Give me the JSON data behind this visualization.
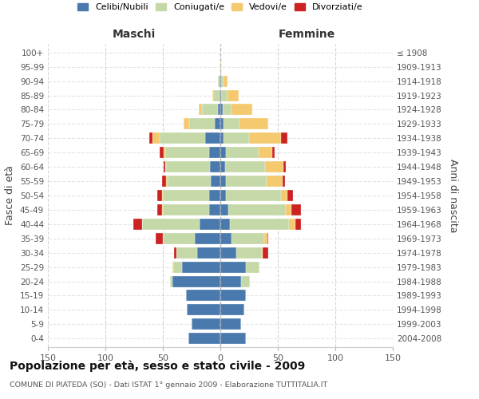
{
  "age_groups": [
    "100+",
    "95-99",
    "90-94",
    "85-89",
    "80-84",
    "75-79",
    "70-74",
    "65-69",
    "60-64",
    "55-59",
    "50-54",
    "45-49",
    "40-44",
    "35-39",
    "30-34",
    "25-29",
    "20-24",
    "15-19",
    "10-14",
    "5-9",
    "0-4"
  ],
  "birth_years": [
    "≤ 1908",
    "1909-1913",
    "1914-1918",
    "1919-1923",
    "1924-1928",
    "1929-1933",
    "1934-1938",
    "1939-1943",
    "1944-1948",
    "1949-1953",
    "1954-1958",
    "1959-1963",
    "1964-1968",
    "1969-1973",
    "1974-1978",
    "1979-1983",
    "1984-1988",
    "1989-1993",
    "1994-1998",
    "1999-2003",
    "2004-2008"
  ],
  "maschi": {
    "celibi": [
      0,
      0,
      1,
      1,
      2,
      5,
      13,
      10,
      9,
      8,
      10,
      10,
      18,
      22,
      20,
      33,
      42,
      30,
      29,
      25,
      28
    ],
    "coniugati": [
      0,
      0,
      1,
      5,
      14,
      22,
      40,
      38,
      38,
      38,
      40,
      40,
      50,
      28,
      18,
      8,
      2,
      0,
      0,
      0,
      0
    ],
    "vedovi": [
      0,
      0,
      0,
      1,
      3,
      5,
      6,
      1,
      1,
      1,
      1,
      1,
      0,
      0,
      0,
      1,
      0,
      0,
      0,
      0,
      0
    ],
    "divorziati": [
      0,
      0,
      0,
      0,
      0,
      0,
      3,
      4,
      1,
      4,
      4,
      4,
      8,
      6,
      2,
      0,
      0,
      0,
      0,
      0,
      0
    ]
  },
  "femmine": {
    "nubili": [
      0,
      0,
      1,
      1,
      2,
      3,
      3,
      5,
      4,
      5,
      5,
      7,
      8,
      10,
      14,
      22,
      18,
      22,
      21,
      18,
      22
    ],
    "coniugate": [
      0,
      0,
      2,
      5,
      8,
      14,
      22,
      28,
      35,
      35,
      48,
      50,
      52,
      28,
      22,
      12,
      8,
      0,
      0,
      0,
      0
    ],
    "vedove": [
      0,
      1,
      3,
      10,
      18,
      25,
      28,
      12,
      16,
      14,
      5,
      5,
      5,
      3,
      1,
      0,
      0,
      0,
      0,
      0,
      0
    ],
    "divorziate": [
      0,
      0,
      0,
      0,
      0,
      0,
      5,
      2,
      2,
      2,
      5,
      8,
      5,
      1,
      5,
      0,
      0,
      0,
      0,
      0,
      0
    ]
  },
  "colors": {
    "celibi": "#4a7aad",
    "coniugati": "#c5d9a8",
    "vedovi": "#f5c96e",
    "divorziati": "#cc2222"
  },
  "xlim": 150,
  "title": "Popolazione per età, sesso e stato civile - 2009",
  "subtitle": "COMUNE DI PIATEDA (SO) - Dati ISTAT 1° gennaio 2009 - Elaborazione TUTTITALIA.IT",
  "ylabel_left": "Fasce di età",
  "ylabel_right": "Anni di nascita",
  "xlabel_maschi": "Maschi",
  "xlabel_femmine": "Femmine"
}
